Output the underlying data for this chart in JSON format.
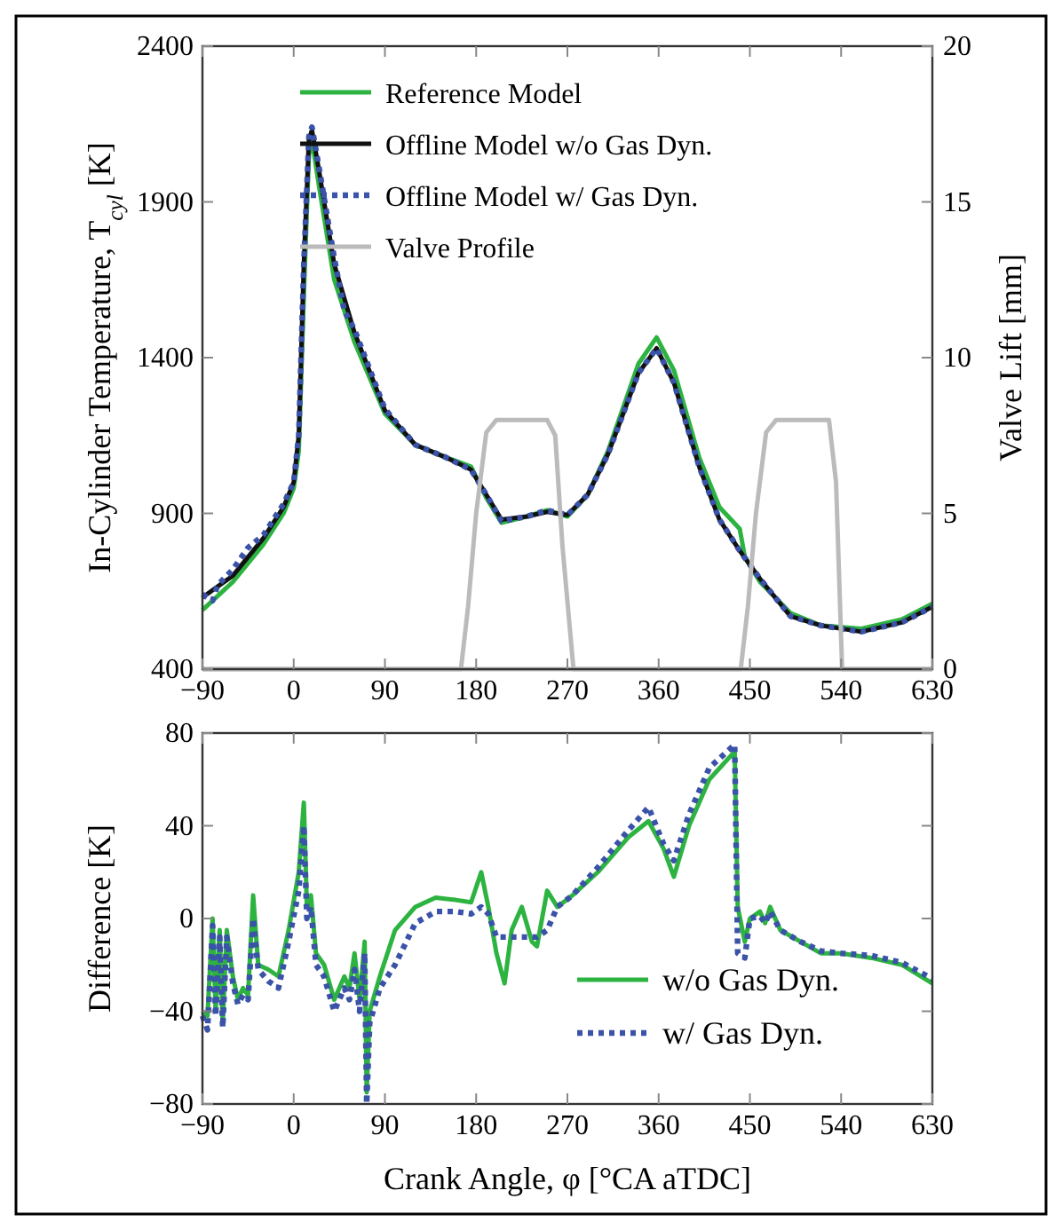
{
  "chart_data": [
    {
      "type": "line",
      "ylabel": "In-Cylinder Temperature, T$_{cyl}$ [K]",
      "y2label": "Valve Lift [mm]",
      "xlim": [
        -90,
        630
      ],
      "xticks": [
        {
          "value": -90,
          "label": "−90"
        },
        0,
        90,
        180,
        270,
        360,
        450,
        540,
        630
      ],
      "ylim": [
        400,
        2400
      ],
      "yticks": [
        400,
        900,
        1400,
        1900,
        2400
      ],
      "y2lim": [
        0,
        20
      ],
      "y2ticks": [
        0,
        5,
        10,
        15,
        20
      ],
      "grid": false,
      "legend": "top",
      "series": [
        {
          "name": "Reference Model",
          "color": "#2db340",
          "line_style": "solid",
          "x": [
            -90,
            -60,
            -30,
            -10,
            0,
            5,
            10,
            15,
            18,
            25,
            40,
            60,
            90,
            120,
            150,
            175,
            190,
            205,
            230,
            250,
            270,
            290,
            310,
            340,
            358,
            375,
            400,
            420,
            440,
            445,
            460,
            490,
            520,
            560,
            600,
            630
          ],
          "values": [
            590,
            680,
            800,
            900,
            980,
            1100,
            1600,
            2050,
            2100,
            1950,
            1650,
            1450,
            1220,
            1120,
            1080,
            1050,
            950,
            870,
            890,
            910,
            890,
            960,
            1100,
            1380,
            1465,
            1360,
            1080,
            920,
            850,
            760,
            680,
            580,
            540,
            530,
            560,
            610
          ]
        },
        {
          "name": "Offline Model w/o Gas Dyn.",
          "color": "#111111",
          "line_style": "solid",
          "x": [
            -90,
            -60,
            -30,
            -10,
            0,
            5,
            10,
            15,
            18,
            25,
            40,
            60,
            90,
            120,
            150,
            175,
            190,
            205,
            230,
            250,
            270,
            290,
            310,
            340,
            358,
            375,
            400,
            420,
            440,
            460,
            490,
            520,
            560,
            600,
            630
          ],
          "values": [
            630,
            700,
            820,
            920,
            1000,
            1150,
            1700,
            2100,
            2130,
            2000,
            1700,
            1480,
            1230,
            1120,
            1080,
            1040,
            960,
            880,
            890,
            905,
            895,
            960,
            1090,
            1350,
            1430,
            1320,
            1050,
            880,
            780,
            690,
            570,
            540,
            520,
            550,
            600
          ]
        },
        {
          "name": "Offline Model w/ Gas Dyn.",
          "color": "#3a52a8",
          "line_style": "dotted",
          "x": [
            -90,
            -80,
            -75,
            -60,
            -45,
            -30,
            -10,
            0,
            5,
            10,
            15,
            18,
            25,
            40,
            50,
            60,
            90,
            120,
            150,
            175,
            190,
            205,
            230,
            250,
            270,
            290,
            310,
            340,
            358,
            375,
            400,
            420,
            440,
            460,
            490,
            520,
            560,
            600,
            630
          ],
          "values": [
            640,
            620,
            670,
            720,
            790,
            830,
            930,
            1000,
            1150,
            1700,
            2110,
            2140,
            2010,
            1720,
            1550,
            1490,
            1235,
            1120,
            1080,
            1040,
            960,
            875,
            890,
            910,
            895,
            960,
            1090,
            1350,
            1430,
            1320,
            1050,
            880,
            780,
            690,
            570,
            540,
            520,
            550,
            600
          ]
        },
        {
          "name": "Valve Profile",
          "color": "#bbbbbb",
          "line_style": "solid",
          "axis": "y2",
          "x": [
            -90,
            165,
            172,
            180,
            190,
            200,
            250,
            258,
            265,
            276,
            630
          ],
          "values": [
            0,
            0,
            2,
            5,
            7.6,
            8,
            8,
            7.5,
            4,
            0,
            0
          ]
        },
        {
          "color": "#bbbbbb",
          "line_style": "solid",
          "axis": "y2",
          "x": [
            -90,
            441,
            448,
            456,
            466,
            476,
            528,
            535,
            541,
            630
          ],
          "values": [
            0,
            0,
            2,
            5,
            7.6,
            8,
            8,
            6,
            0,
            0
          ]
        }
      ]
    },
    {
      "type": "line",
      "xlabel": "Crank Angle, φ [°CA aTDC]",
      "ylabel": "Difference [K]",
      "xlim": [
        -90,
        630
      ],
      "xticks": [
        {
          "value": -90,
          "label": "−90"
        },
        0,
        90,
        180,
        270,
        360,
        450,
        540,
        630
      ],
      "ylim": [
        -80,
        80
      ],
      "yticks": [
        {
          "value": -80,
          "label": "−80"
        },
        {
          "value": -40,
          "label": "−40"
        },
        0,
        40,
        80
      ],
      "grid": false,
      "legend": "bottom right",
      "series": [
        {
          "name": "w/o Gas Dyn.",
          "color": "#2db340",
          "line_style": "solid",
          "x": [
            -90,
            -85,
            -80,
            -77,
            -73,
            -70,
            -66,
            -60,
            -55,
            -50,
            -45,
            -40,
            -35,
            -25,
            -15,
            -5,
            5,
            10,
            13,
            17,
            22,
            30,
            40,
            50,
            55,
            60,
            65,
            70,
            72,
            75,
            85,
            100,
            120,
            140,
            160,
            175,
            185,
            192,
            200,
            208,
            215,
            225,
            235,
            240,
            250,
            260,
            275,
            300,
            330,
            350,
            365,
            375,
            390,
            410,
            435,
            438,
            445,
            450,
            460,
            465,
            470,
            480,
            500,
            520,
            540,
            570,
            600,
            630
          ],
          "values": [
            -40,
            -42,
            0,
            -40,
            -5,
            -45,
            -5,
            -25,
            -35,
            -30,
            -33,
            10,
            -20,
            -22,
            -25,
            -5,
            20,
            50,
            5,
            10,
            -15,
            -20,
            -35,
            -25,
            -30,
            -15,
            -35,
            -10,
            -75,
            -40,
            -25,
            -5,
            5,
            9,
            8,
            7,
            20,
            5,
            -15,
            -28,
            -5,
            5,
            -10,
            -12,
            12,
            5,
            10,
            20,
            35,
            42,
            30,
            18,
            40,
            60,
            72,
            5,
            -10,
            0,
            3,
            -2,
            5,
            -5,
            -10,
            -15,
            -15,
            -17,
            -20,
            -28
          ]
        },
        {
          "name": "w/ Gas Dyn.",
          "color": "#3a52a8",
          "line_style": "dotted",
          "x": [
            -90,
            -85,
            -80,
            -77,
            -73,
            -70,
            -66,
            -60,
            -55,
            -50,
            -45,
            -40,
            -35,
            -25,
            -15,
            -5,
            5,
            10,
            13,
            17,
            22,
            30,
            40,
            50,
            55,
            60,
            65,
            70,
            72,
            75,
            85,
            100,
            120,
            140,
            160,
            175,
            185,
            192,
            200,
            208,
            215,
            225,
            235,
            240,
            250,
            260,
            275,
            300,
            330,
            350,
            365,
            375,
            390,
            410,
            435,
            438,
            445,
            450,
            460,
            465,
            470,
            480,
            500,
            520,
            540,
            570,
            600,
            630
          ],
          "values": [
            -42,
            -48,
            -3,
            -42,
            -8,
            -47,
            -8,
            -28,
            -37,
            -33,
            -35,
            0,
            -22,
            -27,
            -30,
            -10,
            12,
            40,
            0,
            5,
            -20,
            -25,
            -40,
            -30,
            -35,
            -22,
            -40,
            -15,
            -80,
            -45,
            -30,
            -20,
            -2,
            3,
            3,
            2,
            5,
            2,
            -8,
            -8,
            -8,
            -8,
            -8,
            -8,
            -5,
            5,
            10,
            22,
            38,
            48,
            32,
            25,
            45,
            65,
            75,
            -15,
            -17,
            0,
            1,
            -2,
            3,
            -5,
            -10,
            -14,
            -15,
            -16,
            -19,
            -26
          ]
        }
      ]
    }
  ]
}
